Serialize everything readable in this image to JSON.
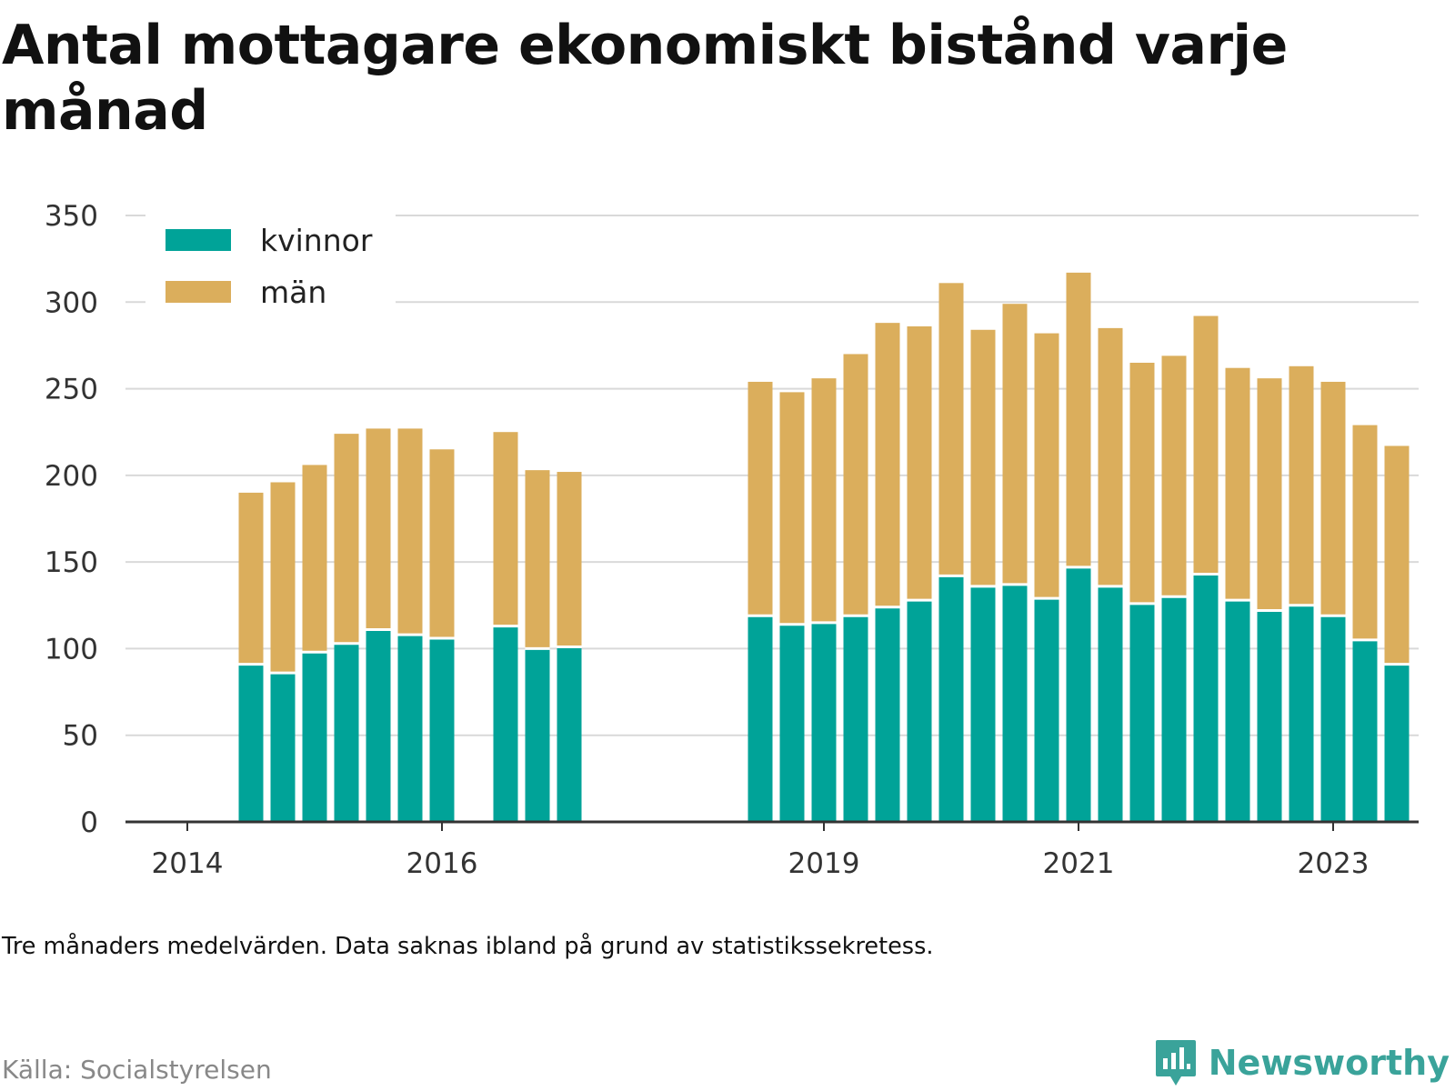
{
  "title": "Antal mottagare ekonomiskt bistånd varje månad",
  "note": "Tre månaders medelvärden. Data saknas ibland på grund av statistikssekretess.",
  "source": "Källa: Socialstyrelsen",
  "brand": {
    "name": "Newsworthy",
    "icon": "bar-chart-logo-icon",
    "color": "#3aa39a"
  },
  "chart_data": {
    "type": "bar",
    "stacked": true,
    "x_axis": {
      "ticks": [
        "2014",
        "2016",
        "2019",
        "2021",
        "2023"
      ]
    },
    "y_axis": {
      "ticks": [
        0,
        50,
        100,
        150,
        200,
        250,
        300,
        350
      ],
      "ylim": [
        0,
        350
      ]
    },
    "grid": true,
    "legend_position": "top-left",
    "colors": {
      "kvinnor": "#00a398",
      "män": "#dbae5c"
    },
    "series": [
      {
        "name": "kvinnor",
        "values": [
          91,
          86,
          98,
          103,
          111,
          108,
          106,
          113,
          100,
          101,
          119,
          114,
          115,
          119,
          124,
          128,
          142,
          136,
          137,
          129,
          147,
          136,
          126,
          130,
          143,
          128,
          122,
          125,
          119,
          105,
          91
        ]
      },
      {
        "name": "män",
        "values": [
          99,
          110,
          108,
          121,
          116,
          119,
          109,
          112,
          103,
          101,
          135,
          134,
          141,
          151,
          164,
          158,
          169,
          148,
          162,
          153,
          170,
          149,
          139,
          139,
          149,
          134,
          134,
          138,
          135,
          124,
          126
        ]
      }
    ],
    "x": [
      "2014-07",
      "2014-10",
      "2015-01",
      "2015-04",
      "2015-07",
      "2015-10",
      "2016-01",
      "2016-07",
      "2016-10",
      "2017-01",
      "2018-07",
      "2018-10",
      "2019-01",
      "2019-04",
      "2019-07",
      "2019-10",
      "2020-01",
      "2020-04",
      "2020-07",
      "2020-10",
      "2021-01",
      "2021-04",
      "2021-07",
      "2021-10",
      "2022-01",
      "2022-04",
      "2022-07",
      "2022-10",
      "2023-01",
      "2023-04",
      "2023-07"
    ]
  }
}
